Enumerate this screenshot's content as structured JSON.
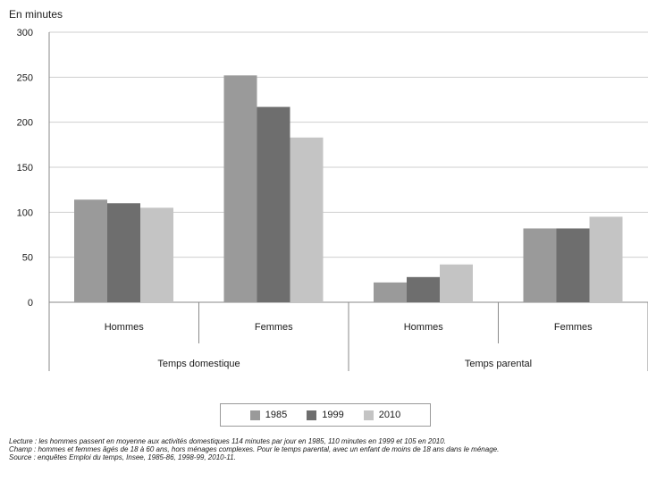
{
  "chart_data": {
    "type": "bar",
    "ylabel": "En minutes",
    "ylim": [
      0,
      300
    ],
    "yticks": [
      0,
      50,
      100,
      150,
      200,
      250,
      300
    ],
    "groups": [
      {
        "label": "Temps domestique",
        "categories": [
          "Hommes",
          "Femmes"
        ]
      },
      {
        "label": "Temps parental",
        "categories": [
          "Hommes",
          "Femmes"
        ]
      }
    ],
    "categories": [
      "Hommes",
      "Femmes",
      "Hommes",
      "Femmes"
    ],
    "series": [
      {
        "name": "1985",
        "color": "#9a9a9a",
        "values": [
          114,
          252,
          22,
          82
        ]
      },
      {
        "name": "1999",
        "color": "#6e6e6e",
        "values": [
          110,
          217,
          28,
          82
        ]
      },
      {
        "name": "2010",
        "color": "#c4c4c4",
        "values": [
          105,
          183,
          42,
          95
        ]
      }
    ],
    "grid": true,
    "legend_position": "bottom"
  },
  "notes": {
    "lecture": "Lecture : les hommes passent en moyenne aux activités domestiques 114 minutes par jour en 1985, 110 minutes en 1999 et 105 en 2010.",
    "champ": "Champ : hommes et femmes âgés de 18 à 60 ans, hors ménages complexes. Pour le temps parental, avec un enfant de moins de 18 ans dans le ménage.",
    "source": "Source : enquêtes Emploi du temps, Insee, 1985-86, 1998-99, 2010-11."
  }
}
